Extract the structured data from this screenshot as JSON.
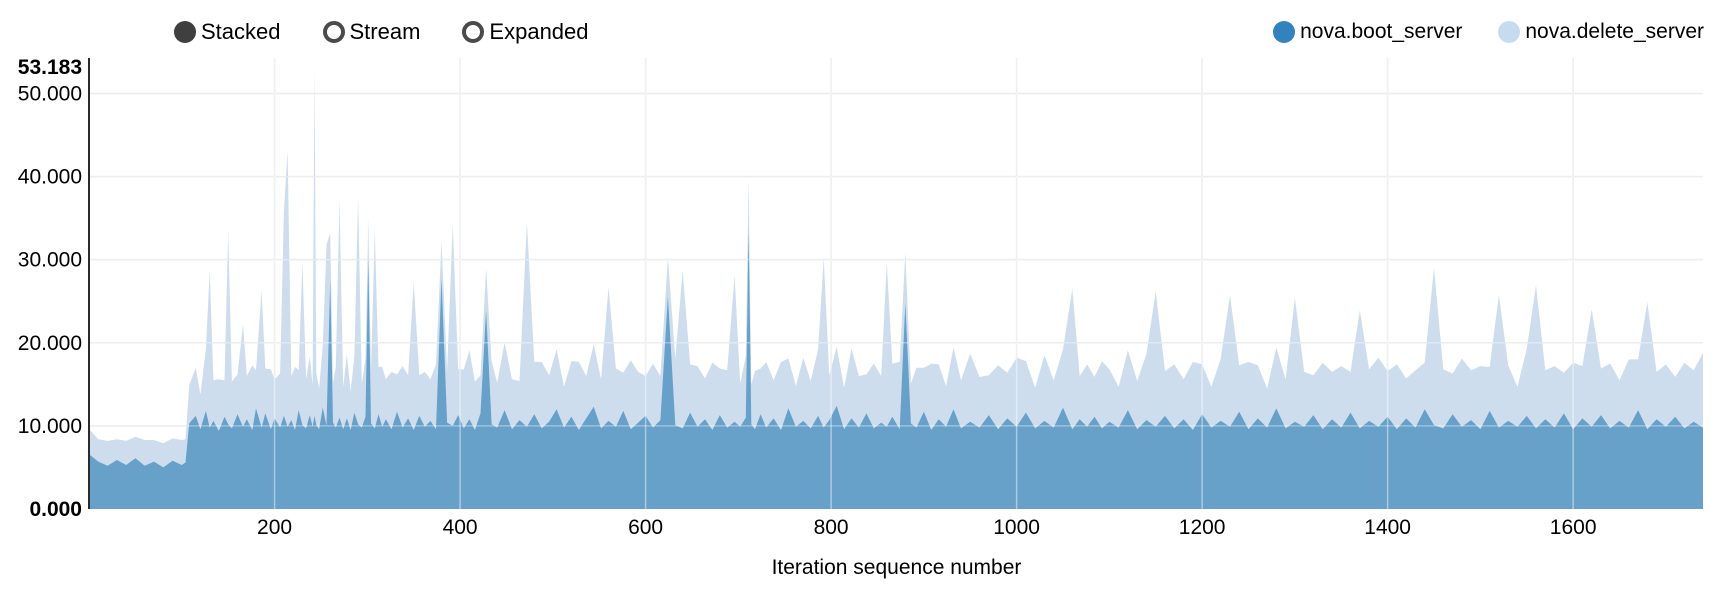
{
  "controls": {
    "options": [
      {
        "label": "Stacked",
        "selected": true
      },
      {
        "label": "Stream",
        "selected": false
      },
      {
        "label": "Expanded",
        "selected": false
      }
    ]
  },
  "legend": {
    "items": [
      {
        "label": "nova.boot_server",
        "color": "#3182bd"
      },
      {
        "label": "nova.delete_server",
        "color": "#c6dbef"
      }
    ]
  },
  "chart_data": {
    "type": "area",
    "stacked": true,
    "title": "",
    "xlabel": "Iteration sequence number",
    "ylabel": "",
    "xlim": [
      1,
      1740
    ],
    "ylim": [
      0,
      53.183
    ],
    "grid": true,
    "legend_position": "top-right",
    "x_ticks": [
      200,
      400,
      600,
      800,
      1000,
      1200,
      1400,
      1600
    ],
    "y_gridlines": [
      10,
      20,
      30,
      40,
      50
    ],
    "y_ticks": [
      {
        "value": 53.183,
        "label": "53.183",
        "bold": true
      },
      {
        "value": 50,
        "label": "50.000",
        "bold": false
      },
      {
        "value": 40,
        "label": "40.000",
        "bold": false
      },
      {
        "value": 30,
        "label": "30.000",
        "bold": false
      },
      {
        "value": 20,
        "label": "20.000",
        "bold": false
      },
      {
        "value": 10,
        "label": "10.000",
        "bold": false
      },
      {
        "value": 0,
        "label": "0.000",
        "bold": true
      }
    ],
    "x": [
      1,
      10,
      20,
      30,
      40,
      50,
      60,
      70,
      80,
      90,
      100,
      104,
      108,
      115,
      120,
      126,
      130,
      134,
      140,
      146,
      150,
      154,
      160,
      166,
      170,
      176,
      180,
      186,
      190,
      196,
      200,
      206,
      210,
      214,
      218,
      222,
      226,
      230,
      234,
      238,
      241,
      243,
      245,
      248,
      252,
      256,
      260,
      263,
      266,
      270,
      274,
      278,
      282,
      286,
      290,
      294,
      298,
      301,
      304,
      308,
      312,
      316,
      320,
      326,
      332,
      338,
      344,
      350,
      356,
      362,
      368,
      374,
      380,
      386,
      392,
      398,
      404,
      410,
      416,
      422,
      428,
      434,
      440,
      448,
      456,
      464,
      472,
      480,
      488,
      496,
      504,
      512,
      520,
      528,
      536,
      544,
      552,
      560,
      568,
      576,
      584,
      592,
      600,
      608,
      616,
      624,
      632,
      640,
      648,
      656,
      664,
      672,
      680,
      688,
      696,
      702,
      708,
      711,
      714,
      718,
      724,
      730,
      738,
      746,
      754,
      762,
      770,
      778,
      786,
      792,
      798,
      806,
      814,
      822,
      830,
      838,
      846,
      854,
      860,
      866,
      874,
      880,
      886,
      892,
      900,
      908,
      916,
      924,
      932,
      940,
      950,
      960,
      970,
      980,
      990,
      1000,
      1010,
      1020,
      1030,
      1040,
      1050,
      1060,
      1068,
      1076,
      1084,
      1092,
      1100,
      1110,
      1120,
      1130,
      1140,
      1150,
      1160,
      1170,
      1180,
      1190,
      1200,
      1210,
      1220,
      1230,
      1240,
      1250,
      1260,
      1270,
      1280,
      1290,
      1300,
      1310,
      1320,
      1330,
      1340,
      1350,
      1360,
      1370,
      1380,
      1390,
      1400,
      1410,
      1420,
      1430,
      1440,
      1450,
      1460,
      1470,
      1480,
      1490,
      1500,
      1510,
      1520,
      1530,
      1540,
      1550,
      1560,
      1570,
      1580,
      1590,
      1600,
      1610,
      1620,
      1630,
      1640,
      1650,
      1660,
      1670,
      1680,
      1690,
      1700,
      1710,
      1720,
      1730,
      1740
    ],
    "series": [
      {
        "name": "nova.boot_server",
        "fill": "#67a0c8",
        "values": [
          6.5,
          5.7,
          5.2,
          5.9,
          5.3,
          6.1,
          5.2,
          5.7,
          5.0,
          5.8,
          5.3,
          5.6,
          10.3,
          11.2,
          9.6,
          11.8,
          9.8,
          10.6,
          9.4,
          11.1,
          10.2,
          9.7,
          11.4,
          9.9,
          10.8,
          9.5,
          12.1,
          9.8,
          11.5,
          9.6,
          10.9,
          9.8,
          11.2,
          9.9,
          10.7,
          9.5,
          11.9,
          10.1,
          9.7,
          11.3,
          9.9,
          11.2,
          10.1,
          9.6,
          12.2,
          10.0,
          27.6,
          10.4,
          9.8,
          11.0,
          9.6,
          10.9,
          9.5,
          11.6,
          10.2,
          9.8,
          11.1,
          30.1,
          10.3,
          9.7,
          11.4,
          9.9,
          10.8,
          9.6,
          11.7,
          9.8,
          10.9,
          9.5,
          11.2,
          9.9,
          10.6,
          9.6,
          27.8,
          10.4,
          10.0,
          11.3,
          9.7,
          10.8,
          9.5,
          11.5,
          23.9,
          10.2,
          9.8,
          11.9,
          9.6,
          10.7,
          9.9,
          11.4,
          9.7,
          10.5,
          12.0,
          9.8,
          11.1,
          9.5,
          10.9,
          12.3,
          9.7,
          10.6,
          9.9,
          11.8,
          9.6,
          10.4,
          11.2,
          9.8,
          10.7,
          25.6,
          10.1,
          9.7,
          11.6,
          9.9,
          10.8,
          9.5,
          11.3,
          9.8,
          10.5,
          9.9,
          11.0,
          33.8,
          10.2,
          9.6,
          11.4,
          9.8,
          10.9,
          9.5,
          12.1,
          9.9,
          10.6,
          9.7,
          11.2,
          9.8,
          10.7,
          12.4,
          9.6,
          10.9,
          9.8,
          11.5,
          9.7,
          10.4,
          9.9,
          11.1,
          9.6,
          24.8,
          10.3,
          9.8,
          11.7,
          9.5,
          10.8,
          9.9,
          12.0,
          9.7,
          10.5,
          9.8,
          11.3,
          9.6,
          10.9,
          9.9,
          11.6,
          9.7,
          10.6,
          9.8,
          12.2,
          9.6,
          10.8,
          9.9,
          11.1,
          9.7,
          10.5,
          9.8,
          11.9,
          9.6,
          10.7,
          9.9,
          11.2,
          9.7,
          10.8,
          9.5,
          11.4,
          9.8,
          10.6,
          9.9,
          11.7,
          9.6,
          10.9,
          9.8,
          12.1,
          9.7,
          10.5,
          9.9,
          11.3,
          9.6,
          10.8,
          9.8,
          11.6,
          9.7,
          10.6,
          9.9,
          11.1,
          9.6,
          10.9,
          9.8,
          12.0,
          10.1,
          9.7,
          11.4,
          9.9,
          10.7,
          9.6,
          11.8,
          9.8,
          10.6,
          9.9,
          11.2,
          9.7,
          10.8,
          9.8,
          11.5,
          9.6,
          10.9,
          9.9,
          11.3,
          9.7,
          10.6,
          9.8,
          11.9,
          9.6,
          10.8,
          9.9,
          11.1,
          9.7,
          10.5,
          9.8
        ]
      },
      {
        "name": "nova.delete_server",
        "fill": "#cdddee",
        "values": [
          3.0,
          2.7,
          3.0,
          2.5,
          2.9,
          2.6,
          3.1,
          2.6,
          2.9,
          2.7,
          3.0,
          2.8,
          4.6,
          5.8,
          4.2,
          7.4,
          18.9,
          4.9,
          6.2,
          4.4,
          23.3,
          5.6,
          4.8,
          12.3,
          5.2,
          7.8,
          4.6,
          16.5,
          5.4,
          7.2,
          4.7,
          6.5,
          24.6,
          33.2,
          5.3,
          7.6,
          4.8,
          19.7,
          5.9,
          7.1,
          5.0,
          41.98,
          6.3,
          4.9,
          7.5,
          21.8,
          5.6,
          4.8,
          7.3,
          26.2,
          5.1,
          7.7,
          4.6,
          6.8,
          27.4,
          5.3,
          7.0,
          4.9,
          6.4,
          23.9,
          5.7,
          7.2,
          4.8,
          6.9,
          4.5,
          7.4,
          5.2,
          17.8,
          4.9,
          6.6,
          5.0,
          7.8,
          4.4,
          6.2,
          24.3,
          5.5,
          7.1,
          8.3,
          5.8,
          4.6,
          5.1,
          7.6,
          5.4,
          8.1,
          6.0,
          4.7,
          24.6,
          6.3,
          8.0,
          5.6,
          7.2,
          4.9,
          6.7,
          8.2,
          5.1,
          7.5,
          5.9,
          16.1,
          7.0,
          4.6,
          8.3,
          6.1,
          4.8,
          7.7,
          5.3,
          4.7,
          8.0,
          19.0,
          5.8,
          7.3,
          4.9,
          8.1,
          5.6,
          6.9,
          17.6,
          5.2,
          7.4,
          5.9,
          4.8,
          7.0,
          5.5,
          7.9,
          4.6,
          8.2,
          6.0,
          4.9,
          7.6,
          5.7,
          8.0,
          20.4,
          5.4,
          7.1,
          5.0,
          8.4,
          6.2,
          4.7,
          7.8,
          5.6,
          19.8,
          6.4,
          8.1,
          6.0,
          4.8,
          7.2,
          5.3,
          8.0,
          6.6,
          4.9,
          7.4,
          5.8,
          8.2,
          6.1,
          4.8,
          7.7,
          5.5,
          8.3,
          6.2,
          4.9,
          7.9,
          5.7,
          7.0,
          16.9,
          5.2,
          7.5,
          4.8,
          8.1,
          6.3,
          4.9,
          7.2,
          5.8,
          8.0,
          16.3,
          5.4,
          7.7,
          4.8,
          8.2,
          6.0,
          4.9,
          7.5,
          15.8,
          5.6,
          8.1,
          6.4,
          4.7,
          7.3,
          5.9,
          14.9,
          6.6,
          4.8,
          8.0,
          5.7,
          7.4,
          4.9,
          14.2,
          6.2,
          8.3,
          5.5,
          7.8,
          4.8,
          6.9,
          5.6,
          18.9,
          7.1,
          4.9,
          8.2,
          6.0,
          7.6,
          5.3,
          16.0,
          6.7,
          4.8,
          8.1,
          17.2,
          5.9,
          7.4,
          4.9,
          8.0,
          6.3,
          14.1,
          5.6,
          7.8,
          4.9,
          8.2,
          6.1,
          15.3,
          5.7,
          7.5,
          4.8,
          7.9,
          6.2,
          9.0
        ]
      }
    ]
  }
}
